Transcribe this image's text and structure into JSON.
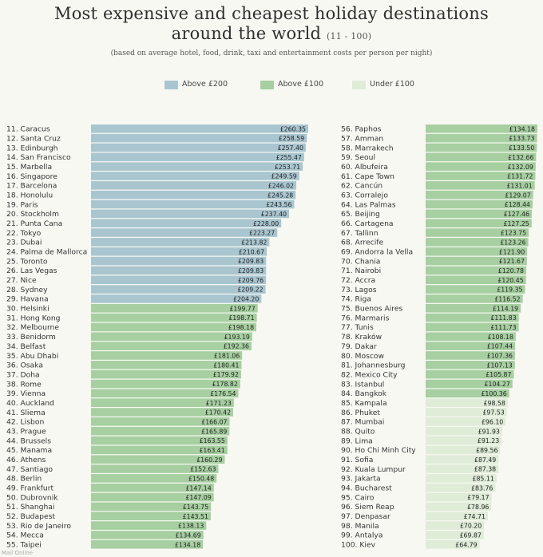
{
  "header": {
    "title_line1": "Most expensive and cheapest holiday destinations",
    "title_line2": "around the world",
    "title_range": "(11 - 100)",
    "subtitle": "(based on average hotel, food, drink, taxi and entertainment costs per person per night)"
  },
  "legend": [
    {
      "label": "Above £200",
      "color": "#a9c6d0"
    },
    {
      "label": "Above £100",
      "color": "#a7cfa1"
    },
    {
      "label": "Under £100",
      "color": "#dfecd8"
    }
  ],
  "colors": {
    "above200": "#a9c6d0",
    "above100": "#a7cfa1",
    "under100": "#dfecd8"
  },
  "watermark": "Mail Online",
  "chart_data": [
    {
      "type": "bar",
      "orientation": "horizontal",
      "categories": [
        "11. Caracus",
        "12. Santa Cruz",
        "13. Edinburgh",
        "14. San Francisco",
        "15. Marbella",
        "16. Singapore",
        "17. Barcelona",
        "18. Honolulu",
        "19. Paris",
        "20. Stockholm",
        "21. Punta Cana",
        "22. Tokyo",
        "23. Dubai",
        "24. Palma de Mallorca",
        "25. Toronto",
        "26. Las Vegas",
        "27. Nice",
        "28. Sydney",
        "29. Havana",
        "30. Helsinki",
        "31. Hong Kong",
        "32. Melbourne",
        "33. Benidorm",
        "34. Belfast",
        "35. Abu Dhabi",
        "36. Osaka",
        "37. Doha",
        "38. Rome",
        "39. Vienna",
        "40. Auckland",
        "41. Sliema",
        "42. Lisbon",
        "43. Prague",
        "44. Brussels",
        "45. Manama",
        "46. Athens",
        "47. Santiago",
        "48. Berlin",
        "49. Frankfurt",
        "50. Dubrovnik",
        "51. Shanghai",
        "52. Budapest",
        "53. Rio de Janeiro",
        "54. Mecca",
        "55. Taipei"
      ],
      "values": [
        260.35,
        258.59,
        257.4,
        255.47,
        253.71,
        249.59,
        246.02,
        245.28,
        243.56,
        237.4,
        228.0,
        223.27,
        213.82,
        210.67,
        209.83,
        209.83,
        209.76,
        209.22,
        204.2,
        199.77,
        198.71,
        198.18,
        193.19,
        192.36,
        181.06,
        180.41,
        179.92,
        178.82,
        176.54,
        171.23,
        170.42,
        166.07,
        165.89,
        163.55,
        163.41,
        160.29,
        152.63,
        150.48,
        147.14,
        147.09,
        143.75,
        143.51,
        138.13,
        134.69,
        134.18
      ],
      "value_labels": [
        "£260.35",
        "£258.59",
        "£257.40",
        "£255.47",
        "£253.71",
        "£249.59",
        "£246.02",
        "£245.28",
        "£243.56",
        "£237.40",
        "£228.00",
        "£223.27",
        "£213.82",
        "£210.67",
        "£209.83",
        "£209.83",
        "£209.76",
        "£209.22",
        "£204.20",
        "£199.77",
        "£198.71",
        "£198.18",
        "£193.19",
        "£192.36",
        "£181.06",
        "£180.41",
        "£179.92",
        "£178.82",
        "£176.54",
        "£171.23",
        "£170.42",
        "£166.07",
        "£165.89",
        "£163.55",
        "£163.41",
        "£160.29",
        "£152.63",
        "£150.48",
        "£147.14",
        "£147.09",
        "£143.75",
        "£143.51",
        "£138.13",
        "£134.69",
        "£134.18"
      ]
    },
    {
      "type": "bar",
      "orientation": "horizontal",
      "categories": [
        "56. Paphos",
        "57. Amman",
        "58. Marrakech",
        "59. Seoul",
        "60. Albufeira",
        "61. Cape Town",
        "62. Cancún",
        "63. Corralejo",
        "64. Las Palmas",
        "65. Beijing",
        "66. Cartagena",
        "67. Tallinn",
        "68. Arrecife",
        "69. Andorra la Vella",
        "70. Chania",
        "71. Nairobi",
        "72. Accra",
        "73. Lagos",
        "74. Riga",
        "75. Buenos Aires",
        "76. Marmaris",
        "77. Tunis",
        "78. Kraków",
        "79. Dakar",
        "80. Moscow",
        "81. Johannesburg",
        "82. Mexico City",
        "83. Istanbul",
        "84. Bangkok",
        "85. Kampala",
        "86. Phuket",
        "87. Mumbai",
        "88. Quito",
        "89. Lima",
        "90. Ho Chi Minh City",
        "91. Sofia",
        "92. Kuala Lumpur",
        "93. Jakarta",
        "94. Bucharest",
        "95. Cairo",
        "96. Siem Reap",
        "97. Denpasar",
        "98. Manila",
        "99. Antalya",
        "100. Kiev"
      ],
      "values": [
        134.18,
        133.73,
        133.5,
        132.66,
        132.09,
        131.72,
        131.01,
        129.07,
        128.44,
        127.46,
        127.25,
        123.75,
        123.26,
        121.9,
        121.67,
        120.78,
        120.45,
        119.35,
        116.52,
        114.19,
        111.83,
        111.73,
        108.18,
        107.44,
        107.36,
        107.13,
        105.87,
        104.27,
        100.36,
        98.58,
        97.53,
        96.1,
        91.93,
        91.23,
        89.56,
        87.49,
        87.38,
        85.11,
        83.76,
        79.17,
        78.96,
        74.71,
        70.2,
        69.87,
        64.79
      ],
      "value_labels": [
        "£134.18",
        "£133.73",
        "£133.50",
        "£132.66",
        "£132.09",
        "£131.72",
        "£131.01",
        "£129.07",
        "£128.44",
        "£127.46",
        "£127.25",
        "£123.75",
        "£123.26",
        "£121.90",
        "£121.67",
        "£120.78",
        "£120.45",
        "£119.35",
        "£116.52",
        "£114.19",
        "£111.83",
        "£111.73",
        "£108.18",
        "£107.44",
        "£107.36",
        "£107.13",
        "£105.87",
        "£104.27",
        "£100.36",
        "£98.58",
        "£97.53",
        "£96.10",
        "£91.93",
        "£91.23",
        "£89.56",
        "£87.49",
        "£87.38",
        "£85.11",
        "£83.76",
        "£79.17",
        "£78.96",
        "£74.71",
        "£70.20",
        "£69.87",
        "£64.79"
      ]
    }
  ]
}
